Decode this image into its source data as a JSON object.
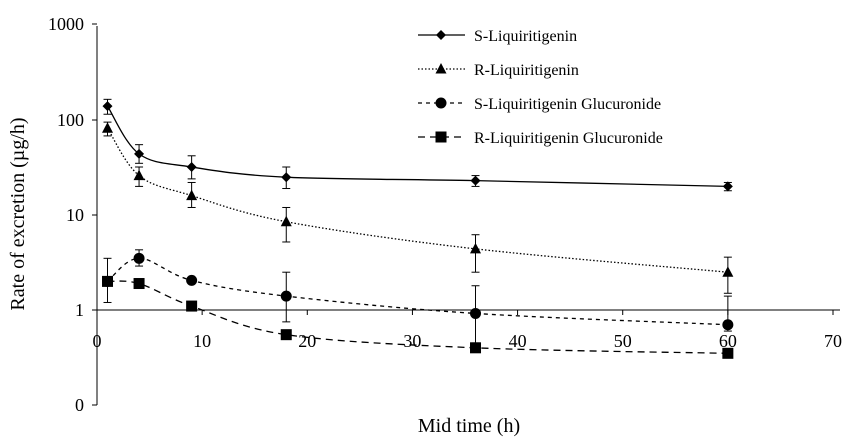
{
  "chart_data": {
    "type": "line",
    "title": "",
    "xlabel": "Mid time (h)",
    "ylabel": "Rate of  excretion (µg/h)",
    "xlim": [
      0,
      70
    ],
    "x_ticks": [
      "0",
      "10",
      "20",
      "30",
      "40",
      "50",
      "60",
      "70"
    ],
    "y_scale": "log",
    "y_ticks": [
      "1000",
      "100",
      "10",
      "1",
      "0"
    ],
    "grid": false,
    "legend_position": "top-right",
    "x": [
      1,
      4,
      9,
      18,
      36,
      60
    ],
    "series": [
      {
        "name": "S-Liquiritigenin",
        "marker": "diamond",
        "line": "solid",
        "values": [
          140,
          44,
          32,
          25,
          23,
          20
        ],
        "errors": [
          [
            115,
            165
          ],
          [
            35,
            55
          ],
          [
            24,
            42
          ],
          [
            19,
            32
          ],
          [
            20,
            26
          ],
          [
            18,
            22
          ]
        ]
      },
      {
        "name": "R-Liquiritigenin",
        "marker": "triangle",
        "line": "dotted",
        "values": [
          82,
          26,
          16,
          8.5,
          4.4,
          2.5
        ],
        "errors": [
          [
            68,
            95
          ],
          [
            20,
            32
          ],
          [
            12,
            22
          ],
          [
            5.2,
            12
          ],
          [
            2.5,
            6.2
          ],
          [
            1.5,
            3.6
          ]
        ]
      },
      {
        "name": "S-Liquiritigenin Glucuronide",
        "marker": "circle",
        "line": "short-dash",
        "values": [
          2.0,
          3.5,
          2.05,
          1.4,
          0.92,
          0.7
        ],
        "errors": [
          [
            1.2,
            3.5
          ],
          [
            2.9,
            4.3
          ],
          [
            2.0,
            2.1
          ],
          [
            0.75,
            2.5
          ],
          [
            0.45,
            1.8
          ],
          [
            0.6,
            1.4
          ]
        ]
      },
      {
        "name": "R-Liquiritigenin Glucuronide",
        "marker": "square",
        "line": "long-dash",
        "values": [
          2.0,
          1.9,
          1.1,
          0.55,
          0.4,
          0.35
        ],
        "errors": null
      }
    ]
  }
}
